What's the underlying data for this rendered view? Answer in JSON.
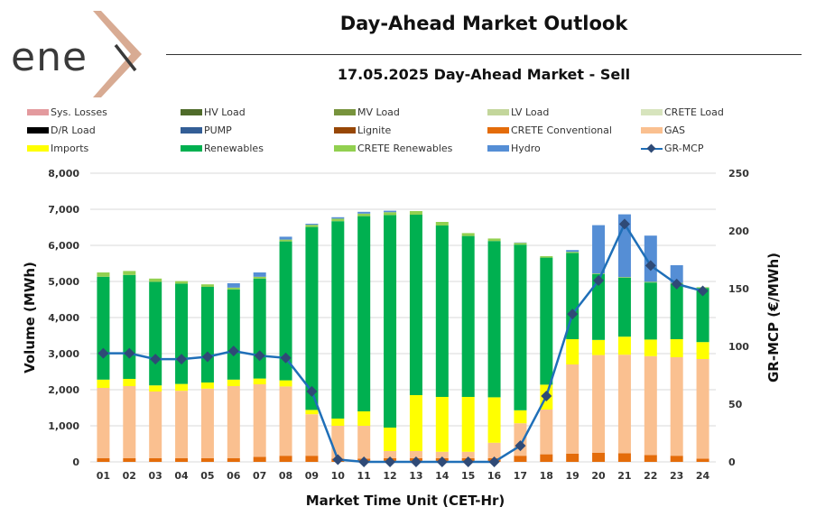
{
  "header": {
    "logo_text": "enex",
    "title": "Day-Ahead Market Outlook",
    "subtitle": "17.05.2025  Day-Ahead Market - Sell"
  },
  "legend": [
    {
      "label": "Sys. Losses",
      "color": "#e39a9e",
      "kind": "box"
    },
    {
      "label": "HV Load",
      "color": "#4f6b2a",
      "kind": "box"
    },
    {
      "label": "MV Load",
      "color": "#77933c",
      "kind": "box"
    },
    {
      "label": "LV Load",
      "color": "#c3d69b",
      "kind": "box"
    },
    {
      "label": "CRETE Load",
      "color": "#d7e4bd",
      "kind": "box"
    },
    {
      "label": "D/R Load",
      "color": "#000000",
      "kind": "box"
    },
    {
      "label": "PUMP",
      "color": "#335e96",
      "kind": "box"
    },
    {
      "label": "Lignite",
      "color": "#974706",
      "kind": "box"
    },
    {
      "label": "CRETE Conventional",
      "color": "#e46c0a",
      "kind": "box"
    },
    {
      "label": "GAS",
      "color": "#fac090",
      "kind": "box"
    },
    {
      "label": "Imports",
      "color": "#ffff00",
      "kind": "box"
    },
    {
      "label": "Renewables",
      "color": "#00b050",
      "kind": "box"
    },
    {
      "label": "CRETE Renewables",
      "color": "#92d050",
      "kind": "box"
    },
    {
      "label": "Hydro",
      "color": "#558ed5",
      "kind": "box"
    },
    {
      "label": "GR-MCP",
      "color": "#1f6fb8",
      "kind": "line"
    }
  ],
  "chart_data": {
    "type": "bar",
    "stacked": true,
    "xlabel": "Market Time Unit (CET-Hr)",
    "ylabel": "Volume (MWh)",
    "y2label": "GR-MCP (€/MWh)",
    "ylim": [
      0,
      8000
    ],
    "y2lim": [
      0,
      250
    ],
    "yticks": [
      "0",
      "1,000",
      "2,000",
      "3,000",
      "4,000",
      "5,000",
      "6,000",
      "7,000",
      "8,000"
    ],
    "y2ticks": [
      "0",
      "50",
      "100",
      "150",
      "200",
      "250"
    ],
    "grid": true,
    "categories": [
      "01",
      "02",
      "03",
      "04",
      "05",
      "06",
      "07",
      "08",
      "09",
      "10",
      "11",
      "12",
      "13",
      "14",
      "15",
      "16",
      "17",
      "18",
      "19",
      "20",
      "21",
      "22",
      "23",
      "24"
    ],
    "series": [
      {
        "name": "CRETE Conventional",
        "color": "#e46c0a",
        "values": [
          100,
          100,
          100,
          100,
          100,
          100,
          140,
          170,
          170,
          90,
          90,
          100,
          100,
          100,
          100,
          100,
          170,
          210,
          230,
          250,
          240,
          190,
          170,
          90
        ]
      },
      {
        "name": "GAS",
        "color": "#fac090",
        "values": [
          1950,
          2000,
          1850,
          1870,
          1930,
          2000,
          2010,
          1920,
          1150,
          910,
          910,
          200,
          200,
          180,
          180,
          430,
          900,
          1240,
          2470,
          2710,
          2730,
          2740,
          2730,
          2760
        ]
      },
      {
        "name": "Imports",
        "color": "#ffff00",
        "values": [
          230,
          200,
          170,
          190,
          170,
          180,
          160,
          170,
          120,
          200,
          400,
          650,
          1550,
          1520,
          1520,
          1260,
          360,
          690,
          700,
          420,
          500,
          460,
          500,
          470
        ]
      },
      {
        "name": "Renewables",
        "color": "#00b050",
        "values": [
          2850,
          2880,
          2870,
          2780,
          2650,
          2500,
          2770,
          3850,
          5070,
          5470,
          5410,
          5890,
          5000,
          4750,
          4460,
          4330,
          4590,
          3520,
          2390,
          1820,
          1630,
          1580,
          1540,
          1500
        ]
      },
      {
        "name": "CRETE Renewables",
        "color": "#92d050",
        "values": [
          120,
          110,
          90,
          70,
          70,
          50,
          50,
          50,
          60,
          70,
          70,
          80,
          100,
          100,
          80,
          70,
          50,
          40,
          30,
          20,
          20,
          20,
          20,
          20
        ]
      },
      {
        "name": "Hydro",
        "color": "#558ed5",
        "values": [
          0,
          0,
          0,
          0,
          0,
          120,
          120,
          80,
          30,
          40,
          50,
          40,
          0,
          0,
          0,
          0,
          10,
          0,
          50,
          1340,
          1740,
          1280,
          490,
          0
        ]
      }
    ],
    "line_series": {
      "name": "GR-MCP",
      "color": "#1f6fb8",
      "marker_color": "#2f4a76",
      "axis": "right",
      "values": [
        94,
        94,
        89,
        89,
        91,
        96,
        92,
        90,
        61,
        2,
        0,
        0,
        0,
        0,
        0,
        0,
        14,
        57,
        128,
        157,
        206,
        170,
        154,
        148
      ]
    }
  }
}
